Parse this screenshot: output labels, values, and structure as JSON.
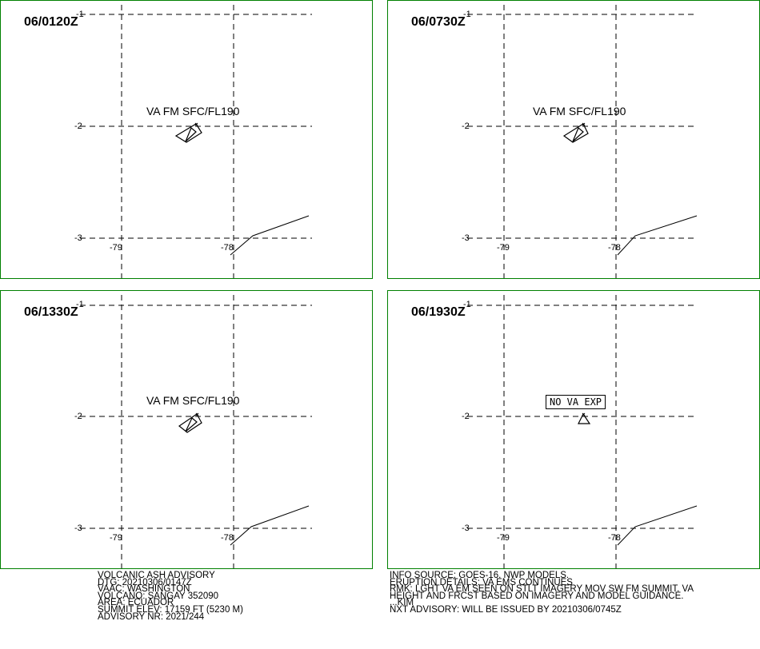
{
  "panels": [
    {
      "time": "06/0120Z",
      "label": "VA FM SFC/FL190",
      "boxed": false
    },
    {
      "time": "06/0730Z",
      "label": "VA FM SFC/FL190",
      "boxed": false
    },
    {
      "time": "06/1330Z",
      "label": "VA FM SFC/FL190",
      "boxed": false
    },
    {
      "time": "06/1930Z",
      "label": "NO VA EXP",
      "boxed": true
    }
  ],
  "axis": {
    "lat_top": "-1",
    "lat_mid": "-2",
    "lat_bot": "-3",
    "lon_left": "-79",
    "lon_right": "-78"
  },
  "advisory": {
    "line1": "VOLCANIC ASH ADVISORY",
    "line2": "DTG: 20210306/0147Z",
    "line3": "VAAC: WASHINGTON",
    "line4": "VOLCANO: SANGAY 352090",
    "line5": "AREA: ECUADOR",
    "line6": "SUMMIT ELEV: 17159 FT (5230 M)",
    "line7": "ADVISORY NR: 2021/244"
  },
  "info": {
    "line1": "INFO SOURCE: GOES-16. NWP MODELS.",
    "line2": "ERUPTION DETAILS: VA EMS CONTINUES",
    "line3": "RMK: LGHT VA EM SEEN ON STLT IMAGERY MOV SW FM SUMMIT. VA",
    "line4": "HEIGHT AND FRCST BASED ON IMAGERY AND MODEL GUIDANCE.",
    "line5": "...KIM",
    "line6": "NXT ADVISORY: WILL BE ISSUED BY 20210306/0745Z"
  },
  "colors": {
    "frame": "#008000",
    "lines": "#000000"
  }
}
